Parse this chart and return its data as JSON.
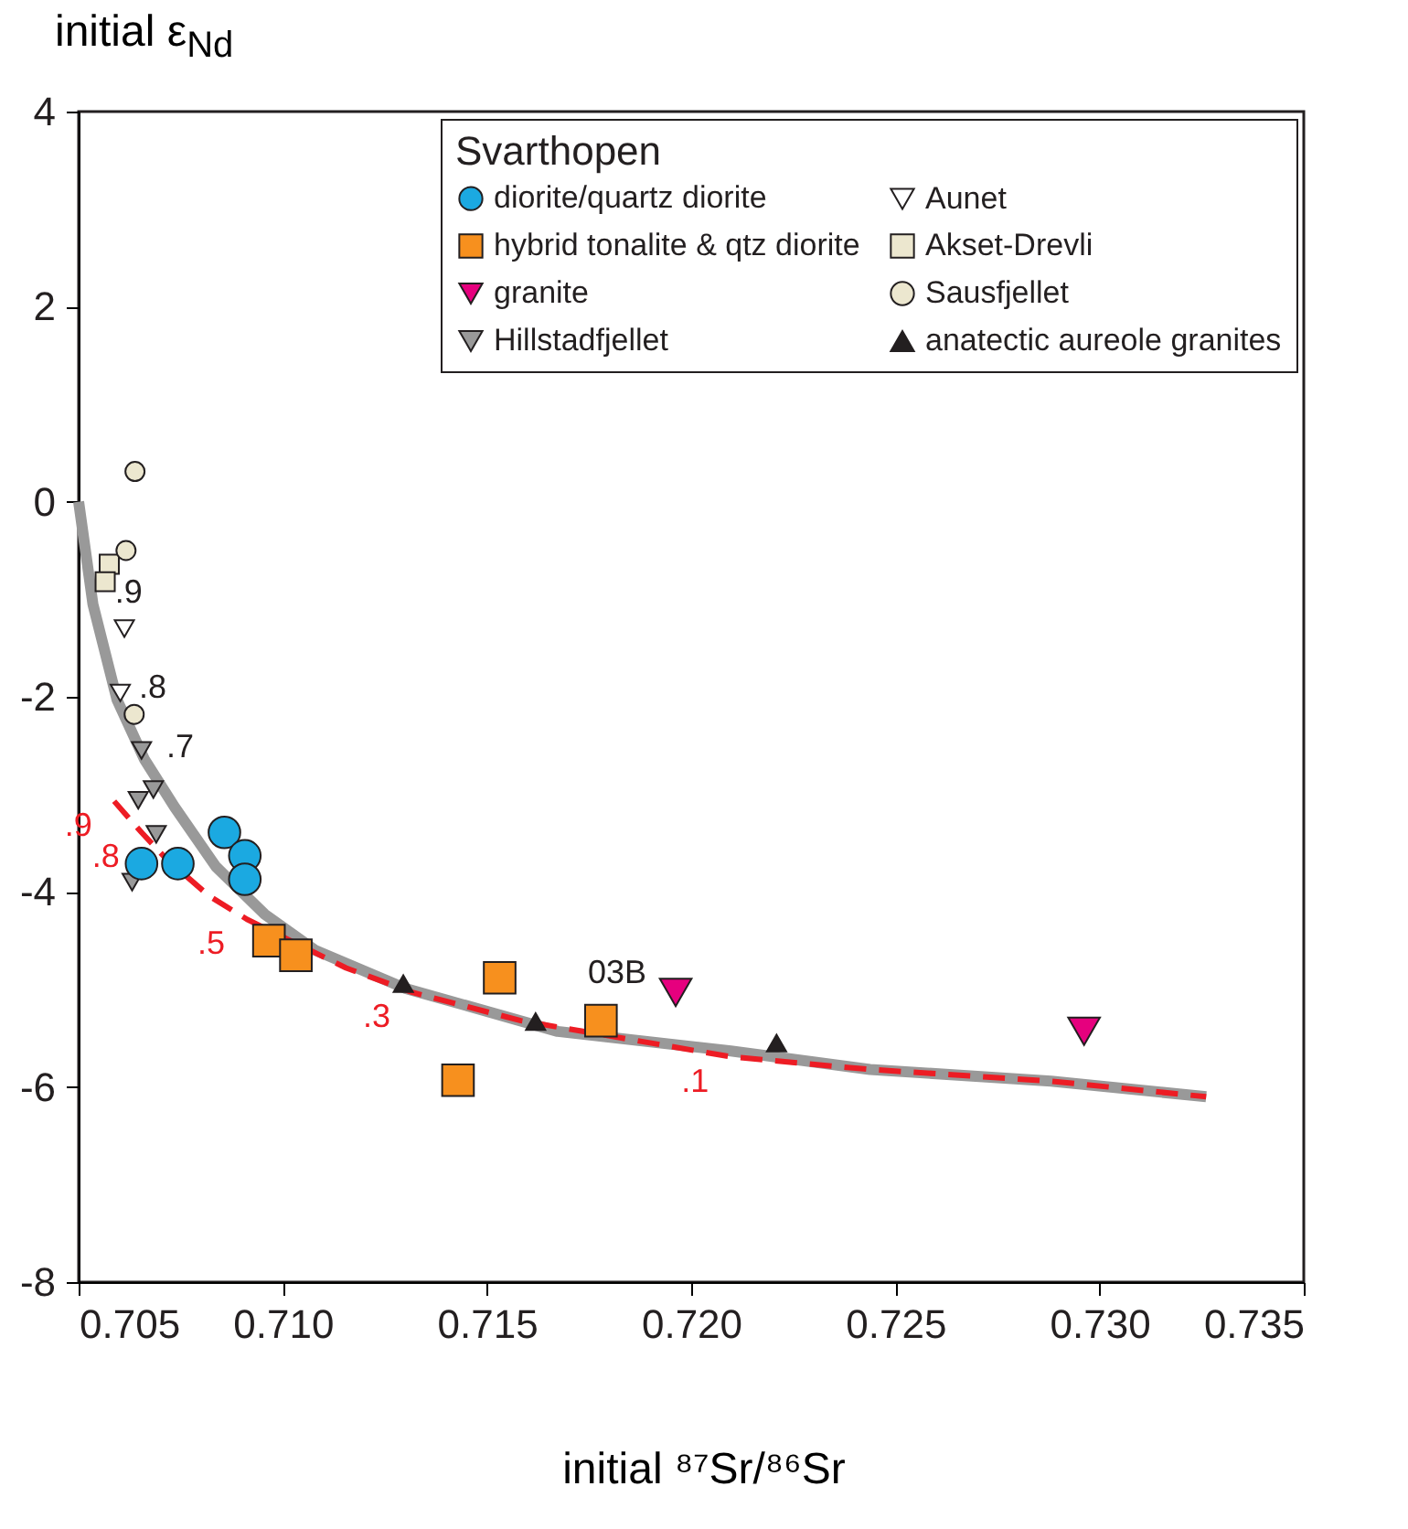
{
  "chart_data": {
    "type": "scatter",
    "xlabel": "initial ⁸⁷Sr/⁸⁶Sr",
    "ylabel": "initial ε$_{Nd}$",
    "xlim": [
      0.705,
      0.735
    ],
    "ylim": [
      -8,
      4
    ],
    "xticks": [
      {
        "value": 0.705,
        "label": "0.705"
      },
      {
        "value": 0.71,
        "label": "0.710"
      },
      {
        "value": 0.715,
        "label": "0.715"
      },
      {
        "value": 0.72,
        "label": "0.720"
      },
      {
        "value": 0.725,
        "label": "0.725"
      },
      {
        "value": 0.73,
        "label": "0.730"
      },
      {
        "value": 0.735,
        "label": "0.735"
      }
    ],
    "yticks": [
      -8,
      -6,
      -4,
      -2,
      0,
      2,
      4
    ],
    "grid": false,
    "legend": "top right",
    "legend_title": "Svarthopen",
    "series": [
      {
        "type": "line",
        "color": "#999999",
        "line_style": "solid",
        "x": [
          0.705,
          0.70535,
          0.70594,
          0.70661,
          0.70735,
          0.70836,
          0.70956,
          0.7108,
          0.71301,
          0.71673,
          0.72097,
          0.72438,
          0.72881,
          0.73261
        ],
        "values": [
          0,
          -1.05,
          -2.03,
          -2.64,
          -3.13,
          -3.74,
          -4.23,
          -4.6,
          -4.99,
          -5.43,
          -5.63,
          -5.82,
          -5.94,
          -6.1
        ]
      },
      {
        "type": "line",
        "color": "#ed1c24",
        "line_style": "dashed",
        "x": [
          0.70587,
          0.70654,
          0.70712,
          0.70819,
          0.70912,
          0.71155,
          0.71317,
          0.71583,
          0.72097,
          0.72438,
          0.72881,
          0.73261
        ],
        "values": [
          -3.07,
          -3.39,
          -3.65,
          -4.04,
          -4.28,
          -4.78,
          -5.03,
          -5.32,
          -5.69,
          -5.82,
          -5.94,
          -6.1
        ]
      },
      {
        "name": "diorite/quartz diorite",
        "marker": "circle",
        "color": "#1ba9e1",
        "x": [
          0.70857,
          0.70907,
          0.70907,
          0.70654,
          0.70743
        ],
        "values": [
          -3.39,
          -3.63,
          -3.87,
          -3.71,
          -3.71
        ]
      },
      {
        "name": "hybrid tonalite & qtz diorite",
        "marker": "square",
        "color": "#f7901e",
        "x": [
          0.70966,
          0.71032,
          0.71531,
          0.71429,
          0.71779
        ],
        "values": [
          -4.5,
          -4.65,
          -4.88,
          -5.93,
          -5.32
        ]
      },
      {
        "name": "granite",
        "marker": "triangle-down",
        "color": "#e6007e",
        "x": [
          0.71962,
          0.72962
        ],
        "values": [
          -5.03,
          -5.43
        ]
      },
      {
        "name": "Hillstadfjellet",
        "marker": "triangle-down",
        "color": "#999999",
        "x": [
          0.70654,
          0.70683,
          0.70646,
          0.7069,
          0.70631
        ],
        "values": [
          -2.55,
          -2.95,
          -3.06,
          -3.41,
          -3.9
        ]
      },
      {
        "name": "Aunet",
        "marker": "triangle-down",
        "color": "#ffffff",
        "x": [
          0.70612,
          0.70602
        ],
        "values": [
          -1.3,
          -1.96
        ]
      },
      {
        "name": "Akset-Drevli",
        "marker": "square",
        "color": "#ece7cf",
        "x": [
          0.70575,
          0.70565
        ],
        "values": [
          -0.64,
          -0.82
        ]
      },
      {
        "name": "Sausfjellet",
        "marker": "circle",
        "color": "#ece7cf",
        "x": [
          0.70638,
          0.70616,
          0.70636
        ],
        "values": [
          0.31,
          -0.5,
          -2.18
        ]
      },
      {
        "name": "anatectic aureole granites",
        "marker": "triangle",
        "color": "#231f20",
        "x": [
          0.71295,
          0.71619,
          0.72209
        ],
        "values": [
          -4.94,
          -5.33,
          -5.55
        ]
      }
    ],
    "annotations": [
      {
        "text": "03B",
        "x": 0.71962,
        "y": -5.03
      },
      {
        "text": ".9",
        "x": 0.70535,
        "y": -1.05
      },
      {
        "text": ".8",
        "x": 0.70594,
        "y": -2.03
      },
      {
        "text": ".7",
        "x": 0.70661,
        "y": -2.64
      },
      {
        "text": ".9",
        "x": 0.70587,
        "y": -3.07
      },
      {
        "text": ".8",
        "x": 0.70654,
        "y": -3.39
      },
      {
        "text": ".5",
        "x": 0.70912,
        "y": -4.28
      },
      {
        "text": ".3",
        "x": 0.71317,
        "y": -5.03
      },
      {
        "text": ".1",
        "x": 0.72097,
        "y": -5.69
      }
    ]
  }
}
